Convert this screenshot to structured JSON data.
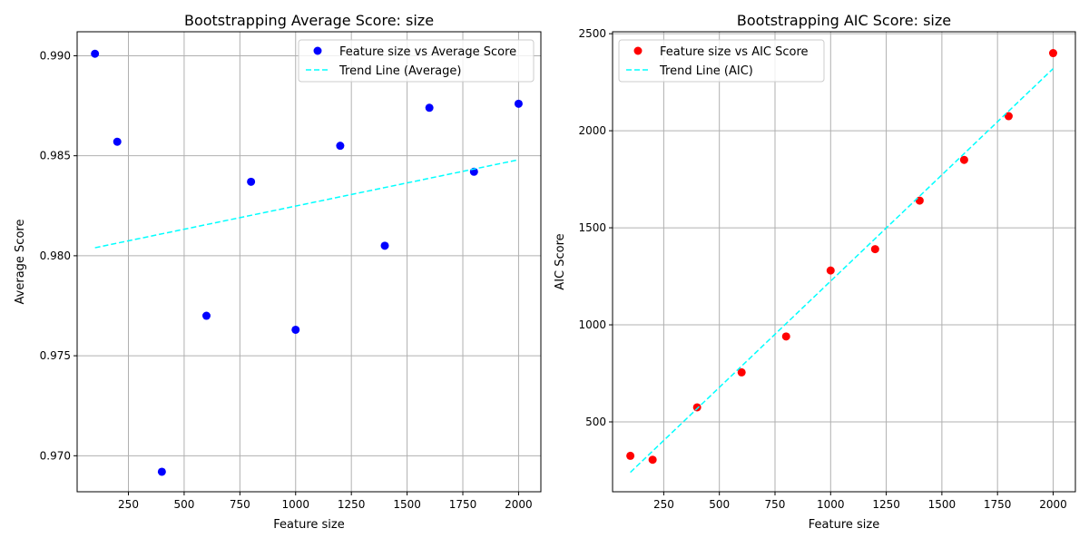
{
  "chart_data": [
    {
      "type": "scatter",
      "title": "Bootstrapping Average Score: size",
      "xlabel": "Feature size",
      "ylabel": "Average Score",
      "xlim": [
        20,
        2100
      ],
      "ylim": [
        0.9682,
        0.9912
      ],
      "xticks": [
        250,
        500,
        750,
        1000,
        1250,
        1500,
        1750,
        2000
      ],
      "yticks": [
        0.97,
        0.975,
        0.98,
        0.985,
        0.99
      ],
      "ytick_decimals": 3,
      "grid": true,
      "legend_position": "top-right",
      "series": [
        {
          "name": "Feature size vs Average Score",
          "kind": "scatter",
          "color": "#0000ff",
          "x": [
            100,
            200,
            400,
            600,
            800,
            1000,
            1200,
            1400,
            1600,
            1800,
            2000
          ],
          "y": [
            0.9901,
            0.9857,
            0.9692,
            0.977,
            0.9837,
            0.9763,
            0.9855,
            0.9805,
            0.9874,
            0.9842,
            0.9876
          ]
        },
        {
          "name": "Trend Line (Average)",
          "kind": "line",
          "style": "dashed",
          "color": "#00ffff",
          "x": [
            100,
            2000
          ],
          "y": [
            0.9804,
            0.9848
          ]
        }
      ]
    },
    {
      "type": "scatter",
      "title": "Bootstrapping AIC Score: size",
      "xlabel": "Feature size",
      "ylabel": "AIC Score",
      "xlim": [
        20,
        2100
      ],
      "ylim": [
        140,
        2510
      ],
      "xticks": [
        250,
        500,
        750,
        1000,
        1250,
        1500,
        1750,
        2000
      ],
      "yticks": [
        500,
        1000,
        1500,
        2000,
        2500
      ],
      "ytick_decimals": 0,
      "grid": true,
      "legend_position": "top-left",
      "series": [
        {
          "name": "Feature size vs AIC Score",
          "kind": "scatter",
          "color": "#ff0000",
          "x": [
            100,
            200,
            400,
            600,
            800,
            1000,
            1200,
            1400,
            1600,
            1800,
            2000
          ],
          "y": [
            325,
            305,
            575,
            755,
            940,
            1280,
            1390,
            1640,
            1850,
            2075,
            2400
          ]
        },
        {
          "name": "Trend Line (AIC)",
          "kind": "line",
          "style": "dashed",
          "color": "#00ffff",
          "x": [
            100,
            2000
          ],
          "y": [
            240,
            2320
          ]
        }
      ]
    }
  ]
}
